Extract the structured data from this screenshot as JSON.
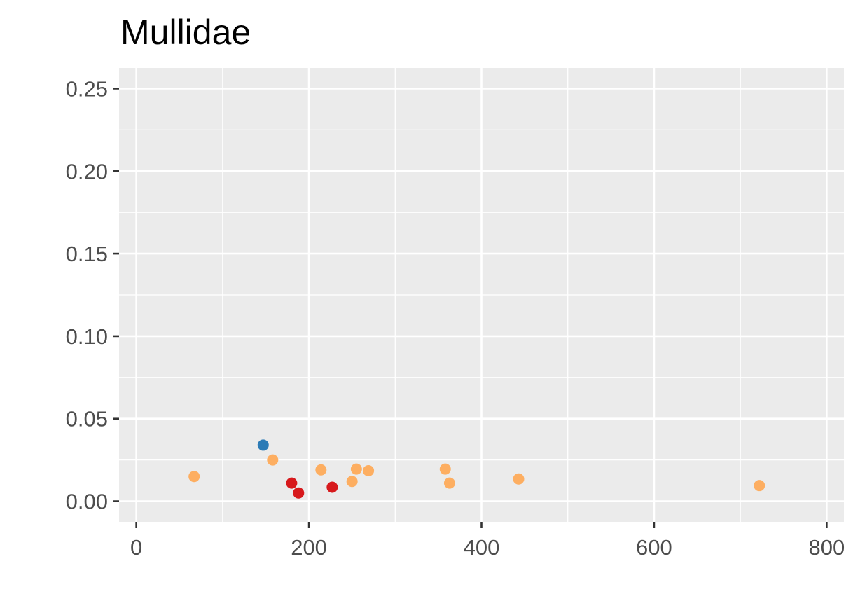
{
  "chart_data": {
    "type": "scatter",
    "title": "Mullidae",
    "xlabel": "",
    "ylabel": "",
    "xlim": [
      -20,
      820
    ],
    "ylim": [
      -0.0125,
      0.2625
    ],
    "grid": true,
    "x_ticks": [
      0,
      200,
      400,
      600,
      800
    ],
    "x_tick_labels": [
      "0",
      "200",
      "400",
      "600",
      "800"
    ],
    "y_ticks": [
      0.0,
      0.05,
      0.1,
      0.15,
      0.2,
      0.25
    ],
    "y_tick_labels": [
      "0.00",
      "0.05",
      "0.10",
      "0.15",
      "0.20",
      "0.25"
    ],
    "colors": {
      "panel_background": "#ebebeb",
      "grid": "#ffffff",
      "tick": "#333333"
    },
    "points": [
      {
        "x": 67,
        "y": 0.015,
        "color": "#fdae61"
      },
      {
        "x": 147,
        "y": 0.034,
        "color": "#2c7bb6"
      },
      {
        "x": 158,
        "y": 0.025,
        "color": "#fdae61"
      },
      {
        "x": 180,
        "y": 0.011,
        "color": "#d7191c"
      },
      {
        "x": 188,
        "y": 0.005,
        "color": "#d7191c"
      },
      {
        "x": 214,
        "y": 0.019,
        "color": "#fdae61"
      },
      {
        "x": 227,
        "y": 0.0085,
        "color": "#d7191c"
      },
      {
        "x": 250,
        "y": 0.012,
        "color": "#fdae61"
      },
      {
        "x": 255,
        "y": 0.0195,
        "color": "#fdae61"
      },
      {
        "x": 269,
        "y": 0.0185,
        "color": "#fdae61"
      },
      {
        "x": 358,
        "y": 0.0195,
        "color": "#fdae61"
      },
      {
        "x": 363,
        "y": 0.011,
        "color": "#fdae61"
      },
      {
        "x": 443,
        "y": 0.0135,
        "color": "#fdae61"
      },
      {
        "x": 722,
        "y": 0.0095,
        "color": "#fdae61"
      }
    ]
  }
}
